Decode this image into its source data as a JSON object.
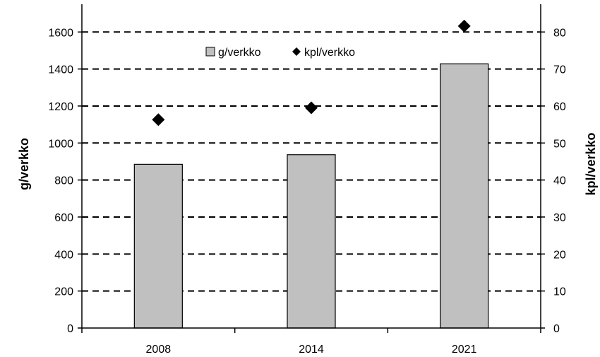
{
  "chart_data": {
    "type": "bar",
    "categories": [
      "2008",
      "2014",
      "2021"
    ],
    "series": [
      {
        "name": "g/verkko",
        "type": "bar",
        "axis": "left",
        "values": [
          885,
          937,
          1428
        ],
        "color": "#c0c0c0"
      },
      {
        "name": "kpl/verkko",
        "type": "scatter",
        "axis": "right",
        "marker": "diamond",
        "values": [
          56.3,
          59.5,
          81.6
        ],
        "color": "#000000"
      }
    ],
    "ylabel": "g/verkko",
    "y2label": "kpl/verkko",
    "ylim": [
      0,
      1750
    ],
    "y2lim": [
      0,
      87.5
    ],
    "yticks": [
      0,
      200,
      400,
      600,
      800,
      1000,
      1200,
      1400,
      1600
    ],
    "y2ticks": [
      0,
      10,
      20,
      30,
      40,
      50,
      60,
      70,
      80
    ],
    "grid": "horizontal-dashed",
    "legend": "top-center"
  }
}
